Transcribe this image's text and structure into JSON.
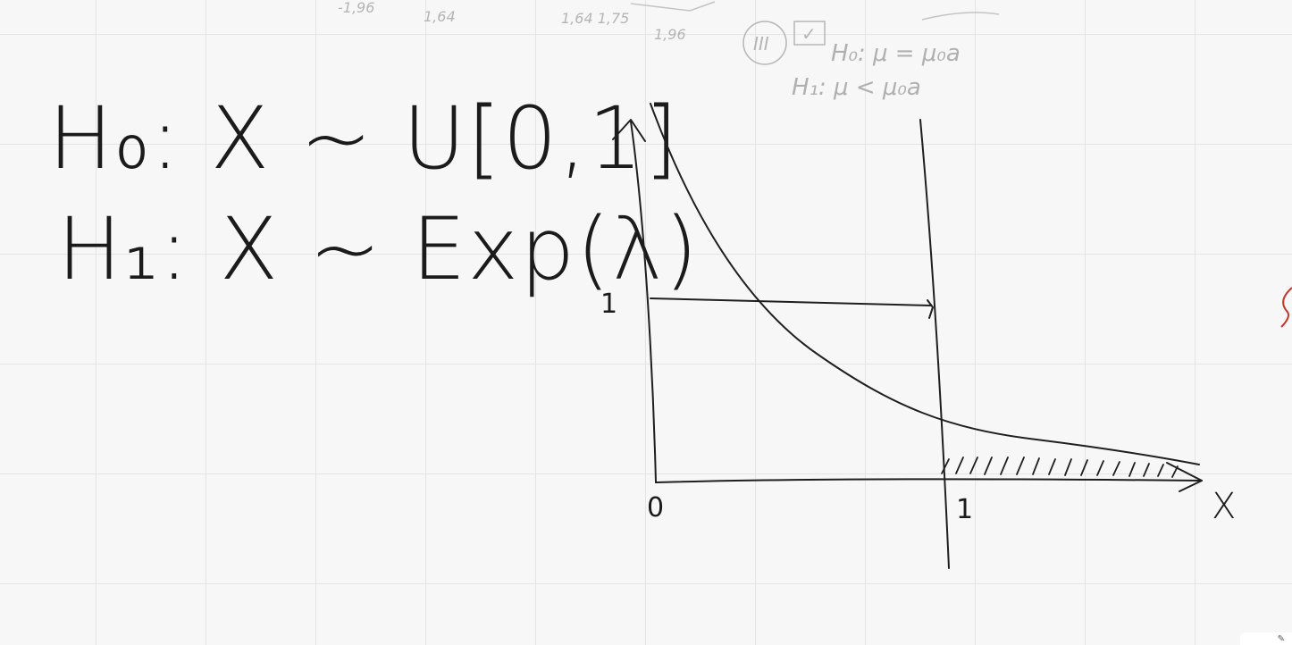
{
  "faint_top": {
    "num_a": "-1,96",
    "num_b": "1,64",
    "num_c": "1,64 1,75",
    "num_d": "1,96",
    "roman": "III",
    "check": "✓",
    "h0": "H₀: μ = μ₀a",
    "h1": "H₁: μ < μ₀a"
  },
  "hypotheses": {
    "h0": "H₀: X ~ U[0,1]",
    "h1": "H₁: X ~ Exp(λ)"
  },
  "graph": {
    "y_tick_one": "1",
    "x_origin": "0",
    "x_tick_one": "1",
    "x_axis": "X"
  },
  "colors": {
    "ink": "#1f1f1f",
    "faint_ink": "#b5b5b5",
    "grid": "#e4e4e4",
    "background": "#f7f7f7",
    "red_ink": "#c0392b"
  },
  "corner": {
    "icon": "pencil-icon"
  }
}
